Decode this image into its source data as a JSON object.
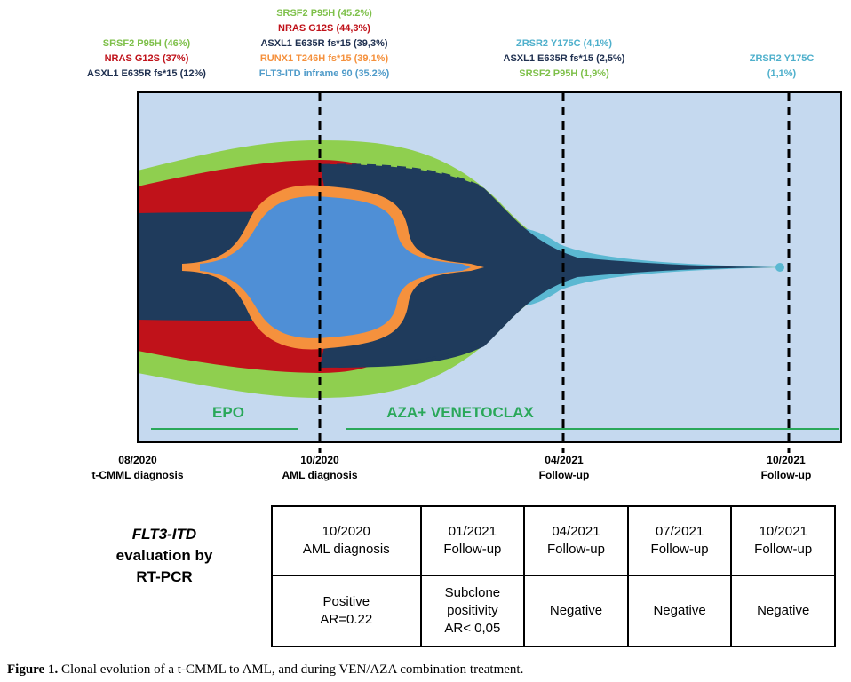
{
  "mutations": {
    "t0": [
      {
        "text": "SRSF2 P95H (46%)",
        "color": "green"
      },
      {
        "text": "NRAS G12S (37%)",
        "color": "red"
      },
      {
        "text": "ASXL1 E635R fs*15 (12%)",
        "color": "navy"
      }
    ],
    "t1": [
      {
        "text": "SRSF2 P95H (45.2%)",
        "color": "green"
      },
      {
        "text": "NRAS G12S (44,3%)",
        "color": "red"
      },
      {
        "text": "ASXL1 E635R fs*15 (39,3%)",
        "color": "navy"
      },
      {
        "text": "RUNX1 T246H fs*15 (39,1%)",
        "color": "orange"
      },
      {
        "text": "FLT3-ITD inframe 90  (35.2%)",
        "color": "blue"
      }
    ],
    "t2": [
      {
        "text": "ZRSR2 Y175C (4,1%)",
        "color": "ltblue"
      },
      {
        "text": "ASXL1 E635R fs*15 (2,5%)",
        "color": "navy"
      },
      {
        "text": "SRSF2 P95H (1,9%)",
        "color": "green"
      }
    ],
    "t3": [
      {
        "text": "ZRSR2 Y175C",
        "color": "ltblue"
      },
      {
        "text": "(1,1%)",
        "color": "ltblue"
      }
    ]
  },
  "treatments": {
    "epo": "EPO",
    "aza_ven": "AZA+ VENETOCLAX"
  },
  "timepoints": [
    {
      "date": "08/2020",
      "event": "t-CMML diagnosis"
    },
    {
      "date": "10/2020",
      "event": "AML diagnosis"
    },
    {
      "date": "04/2021",
      "event": "Follow-up"
    },
    {
      "date": "10/2021",
      "event": "Follow-up"
    }
  ],
  "row_header": {
    "line1": "FLT3-ITD",
    "line2": "evaluation by",
    "line3": "RT-PCR"
  },
  "table": {
    "headers": [
      {
        "date": "10/2020",
        "event": "AML diagnosis"
      },
      {
        "date": "01/2021",
        "event": "Follow-up"
      },
      {
        "date": "04/2021",
        "event": "Follow-up"
      },
      {
        "date": "07/2021",
        "event": "Follow-up"
      },
      {
        "date": "10/2021",
        "event": "Follow-up"
      }
    ],
    "results": [
      [
        "Positive",
        "AR=0.22"
      ],
      [
        "Subclone",
        "positivity",
        "AR< 0,05"
      ],
      [
        "Negative"
      ],
      [
        "Negative"
      ],
      [
        "Negative"
      ]
    ]
  },
  "caption": {
    "label": "Figure 1.",
    "text": " Clonal evolution of a t-CMML to AML, and during VEN/AZA combination treatment."
  },
  "colors": {
    "background": "#c5d9ef",
    "srsf2": "#8fcf4f",
    "nras": "#c0121a",
    "asxl1": "#1f3b5c",
    "runx1": "#f5913d",
    "flt3": "#4f8fd6",
    "zrsr2": "#5bb8d2",
    "treatment_line": "#2aa85a"
  }
}
